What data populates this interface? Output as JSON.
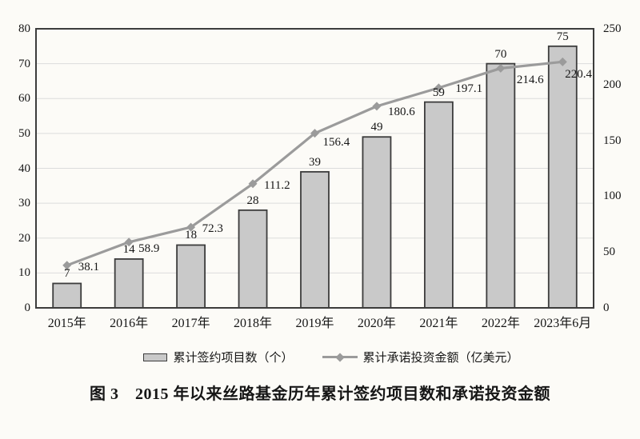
{
  "figure": {
    "caption": "图 3　2015 年以来丝路基金历年累计签约项目数和承诺投资金额"
  },
  "chart_data": {
    "type": "bar",
    "subtype": "combo-bar-line-dual-axis",
    "categories": [
      "2015年",
      "2016年",
      "2017年",
      "2018年",
      "2019年",
      "2020年",
      "2021年",
      "2022年",
      "2023年6月"
    ],
    "series": [
      {
        "name": "累计签约项目数（个）",
        "type": "bar",
        "axis": "left",
        "values": [
          7,
          14,
          18,
          28,
          39,
          49,
          59,
          70,
          75
        ],
        "labels": [
          "7",
          "14",
          "18",
          "28",
          "39",
          "49",
          "59",
          "70",
          "75"
        ]
      },
      {
        "name": "累计承诺投资金额（亿美元）",
        "type": "line",
        "axis": "right",
        "values": [
          38.1,
          58.9,
          72.3,
          111.2,
          156.4,
          180.6,
          197.1,
          214.6,
          220.4
        ],
        "labels": [
          "38.1",
          "58.9",
          "72.3",
          "111.2",
          "156.4",
          "180.6",
          "197.1",
          "214.6",
          "220.4"
        ]
      }
    ],
    "left_axis": {
      "min": 0,
      "max": 80,
      "step": 10,
      "ticks": [
        "0",
        "10",
        "20",
        "30",
        "40",
        "50",
        "60",
        "70",
        "80"
      ]
    },
    "right_axis": {
      "min": 0,
      "max": 250,
      "step": 50,
      "ticks": [
        "0",
        "50",
        "100",
        "150",
        "200",
        "250"
      ]
    },
    "grid": "horizontal",
    "legend_position": "bottom",
    "colors": {
      "bar_fill": "#c9c9c9",
      "bar_border": "#3c3c3c",
      "line": "#9b9b9b",
      "marker": "#9b9b9b",
      "gridline": "#dcdcdc",
      "frame": "#3c3c3c",
      "text": "#161616",
      "background": "#fcfbf7"
    }
  }
}
